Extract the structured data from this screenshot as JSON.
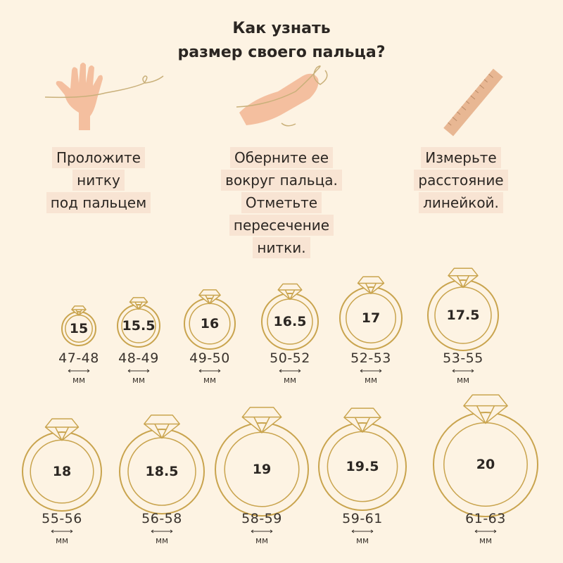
{
  "title": {
    "line1": "Как узнать",
    "line2": "размер своего пальца?"
  },
  "steps": [
    {
      "icon": "hand-with-thread-icon",
      "lines": [
        "Проложите",
        "нитку",
        "под пальцем"
      ]
    },
    {
      "icon": "finger-wrapped-thread-icon",
      "lines": [
        "Оберните ее",
        "вокруг пальца.",
        "Отметьте",
        "пересечение",
        "нитки."
      ]
    },
    {
      "icon": "ruler-icon",
      "lines": [
        "Измерьте",
        "расстояние",
        "линейкой."
      ]
    }
  ],
  "unit": "мм",
  "colors": {
    "background": "#fdf3e3",
    "ring": "#c9a44e",
    "label_bg": "#f8e4d3",
    "icon": "#f2b99a"
  },
  "sizes": [
    {
      "size": "15",
      "range": "47-48"
    },
    {
      "size": "15.5",
      "range": "48-49"
    },
    {
      "size": "16",
      "range": "49-50"
    },
    {
      "size": "16.5",
      "range": "50-52"
    },
    {
      "size": "17",
      "range": "52-53"
    },
    {
      "size": "17.5",
      "range": "53-55"
    },
    {
      "size": "18",
      "range": "55-56"
    },
    {
      "size": "18.5",
      "range": "56-58"
    },
    {
      "size": "19",
      "range": "58-59"
    },
    {
      "size": "19.5",
      "range": "59-61"
    },
    {
      "size": "20",
      "range": "61-63"
    }
  ]
}
